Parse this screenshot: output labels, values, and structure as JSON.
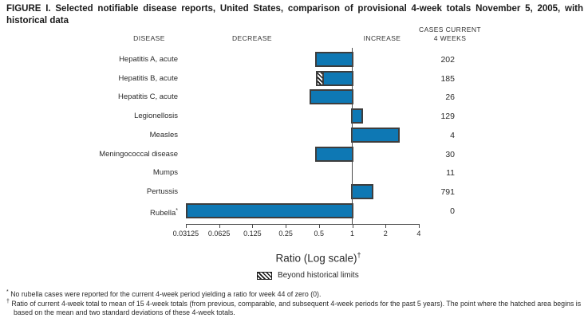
{
  "title": "FIGURE I. Selected notifiable disease reports, United States, comparison of provisional 4-week totals November 5, 2005, with historical data",
  "headers": {
    "disease": "DISEASE",
    "decrease": "DECREASE",
    "increase": "INCREASE",
    "cases_line1": "CASES CURRENT",
    "cases_line2": "4 WEEKS"
  },
  "chart_data": {
    "type": "bar",
    "orientation": "horizontal",
    "scale": "log2",
    "baseline": 1,
    "xlim": [
      0.03125,
      4
    ],
    "axis_ticks": [
      "0.03125",
      "0.0625",
      "0.125",
      "0.25",
      "0.5",
      "1",
      "2",
      "4"
    ],
    "xlabel": "Ratio (Log scale)",
    "xlabel_note_marker": "†",
    "legend_label": "Beyond historical limits",
    "rows": [
      {
        "disease": "Hepatitis A, acute",
        "ratio": 0.46,
        "cases": "202"
      },
      {
        "disease": "Hepatitis B, acute",
        "ratio": 0.47,
        "cases": "185",
        "beyond_historical_limits": true,
        "hatch_to": 0.54
      },
      {
        "disease": "Hepatitis C, acute",
        "ratio": 0.41,
        "cases": "26"
      },
      {
        "disease": "Legionellosis",
        "ratio": 1.25,
        "cases": "129"
      },
      {
        "disease": "Measles",
        "ratio": 2.7,
        "cases": "4"
      },
      {
        "disease": "Meningococcal disease",
        "ratio": 0.46,
        "cases": "30"
      },
      {
        "disease": "Mumps",
        "ratio": 1.0,
        "cases": "11"
      },
      {
        "disease": "Pertussis",
        "ratio": 1.55,
        "cases": "791"
      },
      {
        "disease": "Rubella",
        "ratio": 0,
        "draw_to": 0.03125,
        "cases": "0",
        "footnote_marker": "*"
      }
    ]
  },
  "colors": {
    "bar_fill": "#0e78b4",
    "bar_border": "#3d3d3d",
    "axis": "#4a4a4a"
  },
  "footnotes": [
    {
      "marker": "*",
      "text": "No rubella cases were reported for the current 4-week period yielding a ratio for week 44 of zero (0)."
    },
    {
      "marker": "†",
      "text": "Ratio of current 4-week total to mean of 15 4-week totals (from previous, comparable, and subsequent 4-week periods for the past 5 years). The point where the hatched area begins is based on the mean and two standard deviations of these 4-week totals."
    }
  ]
}
